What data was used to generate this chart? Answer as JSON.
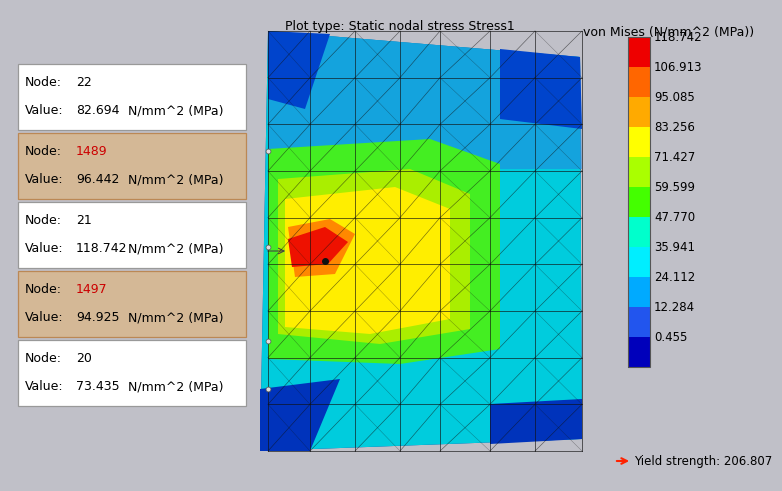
{
  "title_top": "Plot type: Static nodal stress Stress1",
  "colorbar_title": "von Mises (N/mm^2 (MPa))",
  "colorbar_values": [
    118.742,
    106.913,
    95.085,
    83.256,
    71.427,
    59.599,
    47.77,
    35.941,
    24.112,
    12.284,
    0.455
  ],
  "colorbar_colors_top_to_bottom": [
    "#ee0000",
    "#ff6600",
    "#ffaa00",
    "#ffff00",
    "#aaff00",
    "#44ff00",
    "#00ffcc",
    "#00eeff",
    "#00aaff",
    "#2255ee",
    "#0000bb"
  ],
  "yield_label": "Yield strength: 206.807",
  "yield_arrow_color": "#ff2200",
  "bg_color": "#c0c0c8",
  "nodes": [
    {
      "node": "22",
      "value": "82.694",
      "unit": "N/mm^2 (MPa)",
      "highlighted": false
    },
    {
      "node": "1489",
      "value": "96.442",
      "unit": "N/mm^2 (MPa)",
      "highlighted": true
    },
    {
      "node": "21",
      "value": "118.742",
      "unit": "N/mm^2 (MPa)",
      "highlighted": false
    },
    {
      "node": "1497",
      "value": "94.925",
      "unit": "N/mm^2 (MPa)",
      "highlighted": true
    },
    {
      "node": "20",
      "value": "73.435",
      "unit": "N/mm^2 (MPa)",
      "highlighted": false
    }
  ],
  "box_bg_normal": "#ffffff",
  "box_bg_highlighted": "#d4b896",
  "box_border_normal": "#999999",
  "box_border_highlighted": "#bb8855",
  "node_label_normal_color": "#000000",
  "node_label_highlight_color": "#cc0000",
  "font_size_title": 9,
  "font_size_node": 9,
  "font_size_colorbar": 8.5
}
